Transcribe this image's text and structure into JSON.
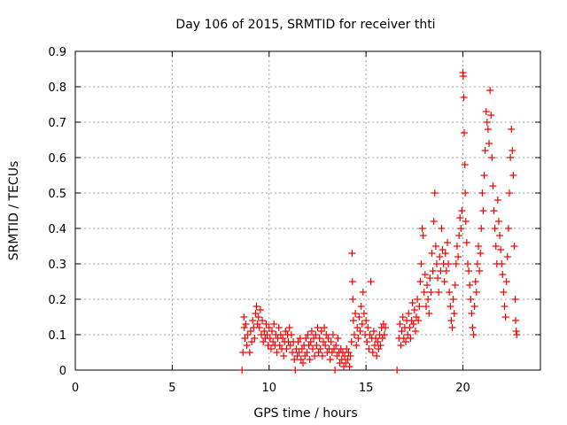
{
  "chart_data": {
    "type": "scatter",
    "title": "Day 106 of 2015, SRMTID for receiver thti",
    "xlabel": "GPS time / hours",
    "ylabel": "SRMTID / TECUs",
    "xlim": [
      0,
      24
    ],
    "ylim": [
      0,
      0.9
    ],
    "x_ticks": [
      0,
      5,
      10,
      15,
      20
    ],
    "x_tick_labels": [
      "0",
      "5",
      "10",
      "15",
      "20"
    ],
    "y_ticks": [
      0,
      0.1,
      0.2,
      0.3,
      0.4,
      0.5,
      0.6,
      0.7,
      0.8,
      0.9
    ],
    "y_tick_labels": [
      "0",
      "0.1",
      "0.2",
      "0.3",
      "0.4",
      "0.5",
      "0.6",
      "0.7",
      "0.8",
      "0.9"
    ],
    "grid": true,
    "legend": "none",
    "marker": "+",
    "series": [
      {
        "name": "SRMTID",
        "color": "#ff0000",
        "points": [
          [
            8.6,
            0.0
          ],
          [
            8.65,
            0.05
          ],
          [
            8.7,
            0.15
          ],
          [
            8.72,
            0.12
          ],
          [
            8.75,
            0.09
          ],
          [
            8.8,
            0.13
          ],
          [
            8.85,
            0.07
          ],
          [
            8.9,
            0.1
          ],
          [
            9.0,
            0.05
          ],
          [
            9.05,
            0.11
          ],
          [
            9.1,
            0.08
          ],
          [
            9.15,
            0.14
          ],
          [
            9.2,
            0.12
          ],
          [
            9.25,
            0.09
          ],
          [
            9.3,
            0.16
          ],
          [
            9.35,
            0.18
          ],
          [
            9.4,
            0.13
          ],
          [
            9.45,
            0.15
          ],
          [
            9.5,
            0.12
          ],
          [
            9.55,
            0.17
          ],
          [
            9.6,
            0.1
          ],
          [
            9.65,
            0.14
          ],
          [
            9.7,
            0.08
          ],
          [
            9.75,
            0.11
          ],
          [
            9.8,
            0.09
          ],
          [
            9.85,
            0.13
          ],
          [
            9.9,
            0.1
          ],
          [
            9.95,
            0.07
          ],
          [
            10.0,
            0.12
          ],
          [
            10.05,
            0.09
          ],
          [
            10.1,
            0.06
          ],
          [
            10.15,
            0.11
          ],
          [
            10.2,
            0.08
          ],
          [
            10.25,
            0.13
          ],
          [
            10.3,
            0.07
          ],
          [
            10.35,
            0.1
          ],
          [
            10.4,
            0.05
          ],
          [
            10.45,
            0.09
          ],
          [
            10.5,
            0.12
          ],
          [
            10.55,
            0.07
          ],
          [
            10.6,
            0.1
          ],
          [
            10.65,
            0.06
          ],
          [
            10.7,
            0.09
          ],
          [
            10.75,
            0.04
          ],
          [
            10.8,
            0.08
          ],
          [
            10.85,
            0.11
          ],
          [
            10.9,
            0.06
          ],
          [
            10.95,
            0.1
          ],
          [
            11.0,
            0.08
          ],
          [
            11.05,
            0.12
          ],
          [
            11.1,
            0.07
          ],
          [
            11.15,
            0.1
          ],
          [
            11.2,
            0.05
          ],
          [
            11.25,
            0.08
          ],
          [
            11.3,
            0.03
          ],
          [
            11.35,
            0.0
          ],
          [
            11.4,
            0.06
          ],
          [
            11.45,
            0.04
          ],
          [
            11.5,
            0.08
          ],
          [
            11.55,
            0.05
          ],
          [
            11.6,
            0.09
          ],
          [
            11.65,
            0.03
          ],
          [
            11.7,
            0.06
          ],
          [
            11.75,
            0.02
          ],
          [
            11.8,
            0.07
          ],
          [
            11.85,
            0.04
          ],
          [
            11.9,
            0.09
          ],
          [
            11.95,
            0.05
          ],
          [
            12.0,
            0.1
          ],
          [
            12.05,
            0.07
          ],
          [
            12.1,
            0.03
          ],
          [
            12.15,
            0.08
          ],
          [
            12.2,
            0.11
          ],
          [
            12.25,
            0.06
          ],
          [
            12.3,
            0.09
          ],
          [
            12.35,
            0.04
          ],
          [
            12.4,
            0.1
          ],
          [
            12.45,
            0.07
          ],
          [
            12.5,
            0.12
          ],
          [
            12.55,
            0.05
          ],
          [
            12.6,
            0.09
          ],
          [
            12.65,
            0.06
          ],
          [
            12.7,
            0.11
          ],
          [
            12.75,
            0.04
          ],
          [
            12.8,
            0.08
          ],
          [
            12.85,
            0.12
          ],
          [
            12.9,
            0.07
          ],
          [
            12.95,
            0.1
          ],
          [
            13.0,
            0.05
          ],
          [
            13.05,
            0.09
          ],
          [
            13.1,
            0.06
          ],
          [
            13.15,
            0.03
          ],
          [
            13.2,
            0.08
          ],
          [
            13.25,
            0.05
          ],
          [
            13.3,
            0.1
          ],
          [
            13.35,
            0.06
          ],
          [
            13.4,
            0.0
          ],
          [
            13.45,
            0.07
          ],
          [
            13.5,
            0.04
          ],
          [
            13.55,
            0.09
          ],
          [
            13.6,
            0.05
          ],
          [
            13.65,
            0.02
          ],
          [
            13.7,
            0.06
          ],
          [
            13.75,
            0.03
          ],
          [
            13.8,
            0.05
          ],
          [
            13.85,
            0.01
          ],
          [
            13.9,
            0.04
          ],
          [
            13.95,
            0.02
          ],
          [
            14.0,
            0.06
          ],
          [
            14.05,
            0.03
          ],
          [
            14.1,
            0.05
          ],
          [
            14.15,
            0.01
          ],
          [
            14.2,
            0.04
          ],
          [
            14.25,
            0.08
          ],
          [
            14.28,
            0.33
          ],
          [
            14.3,
            0.25
          ],
          [
            14.32,
            0.2
          ],
          [
            14.35,
            0.14
          ],
          [
            14.4,
            0.1
          ],
          [
            14.45,
            0.16
          ],
          [
            14.5,
            0.07
          ],
          [
            14.55,
            0.12
          ],
          [
            14.6,
            0.09
          ],
          [
            14.65,
            0.15
          ],
          [
            14.7,
            0.11
          ],
          [
            14.75,
            0.18
          ],
          [
            14.8,
            0.13
          ],
          [
            14.85,
            0.22
          ],
          [
            14.9,
            0.16
          ],
          [
            14.95,
            0.1
          ],
          [
            15.0,
            0.14
          ],
          [
            15.05,
            0.08
          ],
          [
            15.1,
            0.12
          ],
          [
            15.15,
            0.06
          ],
          [
            15.2,
            0.1
          ],
          [
            15.25,
            0.25
          ],
          [
            15.3,
            0.09
          ],
          [
            15.35,
            0.05
          ],
          [
            15.4,
            0.11
          ],
          [
            15.45,
            0.07
          ],
          [
            15.5,
            0.09
          ],
          [
            15.55,
            0.04
          ],
          [
            15.6,
            0.08
          ],
          [
            15.65,
            0.06
          ],
          [
            15.7,
            0.1
          ],
          [
            15.75,
            0.07
          ],
          [
            15.8,
            0.12
          ],
          [
            15.85,
            0.09
          ],
          [
            15.9,
            0.13
          ],
          [
            15.95,
            0.1
          ],
          [
            16.0,
            0.12
          ],
          [
            16.6,
            0.0
          ],
          [
            16.7,
            0.09
          ],
          [
            16.75,
            0.13
          ],
          [
            16.8,
            0.07
          ],
          [
            16.85,
            0.11
          ],
          [
            16.9,
            0.15
          ],
          [
            16.95,
            0.09
          ],
          [
            17.0,
            0.12
          ],
          [
            17.05,
            0.08
          ],
          [
            17.1,
            0.14
          ],
          [
            17.15,
            0.1
          ],
          [
            17.2,
            0.16
          ],
          [
            17.25,
            0.12
          ],
          [
            17.3,
            0.09
          ],
          [
            17.35,
            0.14
          ],
          [
            17.4,
            0.19
          ],
          [
            17.45,
            0.13
          ],
          [
            17.5,
            0.17
          ],
          [
            17.55,
            0.11
          ],
          [
            17.6,
            0.15
          ],
          [
            17.65,
            0.2
          ],
          [
            17.7,
            0.14
          ],
          [
            17.75,
            0.18
          ],
          [
            17.8,
            0.25
          ],
          [
            17.85,
            0.3
          ],
          [
            17.9,
            0.4
          ],
          [
            17.95,
            0.38
          ],
          [
            18.0,
            0.22
          ],
          [
            18.05,
            0.27
          ],
          [
            18.1,
            0.18
          ],
          [
            18.15,
            0.24
          ],
          [
            18.2,
            0.2
          ],
          [
            18.25,
            0.16
          ],
          [
            18.3,
            0.26
          ],
          [
            18.35,
            0.22
          ],
          [
            18.4,
            0.33
          ],
          [
            18.45,
            0.28
          ],
          [
            18.5,
            0.42
          ],
          [
            18.55,
            0.5
          ],
          [
            18.6,
            0.35
          ],
          [
            18.65,
            0.3
          ],
          [
            18.7,
            0.26
          ],
          [
            18.75,
            0.22
          ],
          [
            18.8,
            0.32
          ],
          [
            18.85,
            0.28
          ],
          [
            18.9,
            0.4
          ],
          [
            18.95,
            0.34
          ],
          [
            19.0,
            0.3
          ],
          [
            19.05,
            0.25
          ],
          [
            19.1,
            0.33
          ],
          [
            19.15,
            0.28
          ],
          [
            19.2,
            0.36
          ],
          [
            19.25,
            0.3
          ],
          [
            19.3,
            0.22
          ],
          [
            19.35,
            0.18
          ],
          [
            19.4,
            0.14
          ],
          [
            19.45,
            0.12
          ],
          [
            19.5,
            0.2
          ],
          [
            19.55,
            0.16
          ],
          [
            19.6,
            0.24
          ],
          [
            19.65,
            0.3
          ],
          [
            19.7,
            0.35
          ],
          [
            19.75,
            0.32
          ],
          [
            19.8,
            0.38
          ],
          [
            19.85,
            0.43
          ],
          [
            19.9,
            0.4
          ],
          [
            19.95,
            0.45
          ],
          [
            20.0,
            0.84
          ],
          [
            20.02,
            0.83
          ],
          [
            20.05,
            0.77
          ],
          [
            20.07,
            0.67
          ],
          [
            20.1,
            0.58
          ],
          [
            20.12,
            0.5
          ],
          [
            20.15,
            0.42
          ],
          [
            20.2,
            0.36
          ],
          [
            20.25,
            0.3
          ],
          [
            20.3,
            0.28
          ],
          [
            20.35,
            0.24
          ],
          [
            20.4,
            0.2
          ],
          [
            20.45,
            0.16
          ],
          [
            20.5,
            0.12
          ],
          [
            20.55,
            0.1
          ],
          [
            20.6,
            0.18
          ],
          [
            20.65,
            0.25
          ],
          [
            20.7,
            0.22
          ],
          [
            20.75,
            0.3
          ],
          [
            20.8,
            0.35
          ],
          [
            20.85,
            0.28
          ],
          [
            20.9,
            0.33
          ],
          [
            20.95,
            0.4
          ],
          [
            21.0,
            0.5
          ],
          [
            21.05,
            0.45
          ],
          [
            21.1,
            0.55
          ],
          [
            21.15,
            0.62
          ],
          [
            21.2,
            0.73
          ],
          [
            21.25,
            0.7
          ],
          [
            21.3,
            0.68
          ],
          [
            21.35,
            0.64
          ],
          [
            21.4,
            0.79
          ],
          [
            21.45,
            0.72
          ],
          [
            21.5,
            0.6
          ],
          [
            21.55,
            0.52
          ],
          [
            21.6,
            0.45
          ],
          [
            21.65,
            0.4
          ],
          [
            21.7,
            0.35
          ],
          [
            21.75,
            0.3
          ],
          [
            21.8,
            0.48
          ],
          [
            21.85,
            0.42
          ],
          [
            21.9,
            0.38
          ],
          [
            21.95,
            0.34
          ],
          [
            22.0,
            0.3
          ],
          [
            22.05,
            0.27
          ],
          [
            22.1,
            0.22
          ],
          [
            22.15,
            0.18
          ],
          [
            22.2,
            0.15
          ],
          [
            22.25,
            0.25
          ],
          [
            22.3,
            0.32
          ],
          [
            22.35,
            0.4
          ],
          [
            22.4,
            0.5
          ],
          [
            22.45,
            0.6
          ],
          [
            22.5,
            0.68
          ],
          [
            22.55,
            0.62
          ],
          [
            22.6,
            0.55
          ],
          [
            22.65,
            0.35
          ],
          [
            22.7,
            0.2
          ],
          [
            22.72,
            0.14
          ],
          [
            22.75,
            0.11
          ],
          [
            22.78,
            0.1
          ]
        ]
      }
    ]
  }
}
